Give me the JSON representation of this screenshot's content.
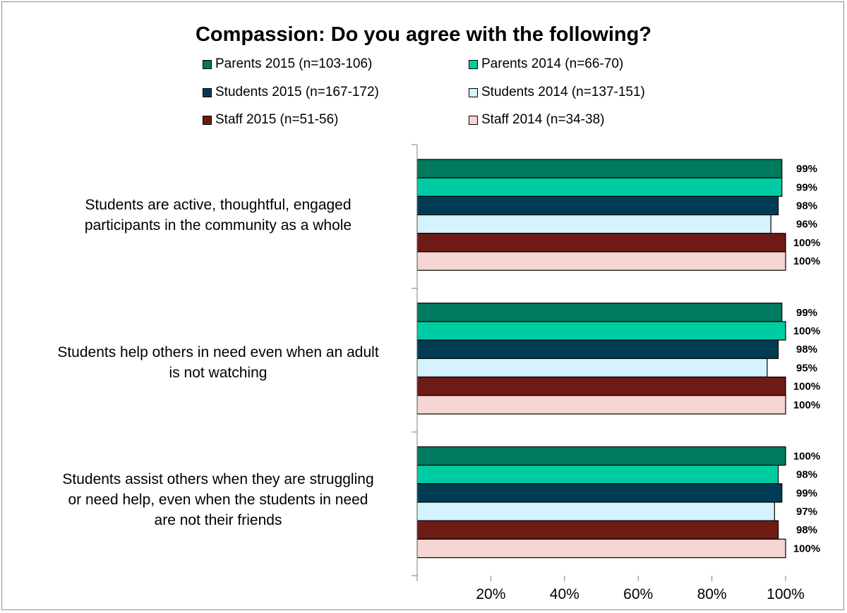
{
  "chart_data": {
    "type": "bar",
    "orientation": "horizontal",
    "title": "Compassion: Do you agree with the following?",
    "categories": [
      "Students are active, thoughtful, engaged participants in the community as a whole",
      "Students help others in need even when an adult is not watching",
      "Students assist others when they are struggling or need help, even when the students in need are not their friends"
    ],
    "category_lines": [
      [
        "Students are active, thoughtful, engaged",
        "participants in the community as a whole"
      ],
      [
        "Students help others in need even when an adult",
        "is not watching"
      ],
      [
        "Students assist others when they are struggling",
        "or need help, even when the students in need",
        "are not their friends"
      ]
    ],
    "series": [
      {
        "name": "Parents 2015 (n=103-106)",
        "color": "#007a5e",
        "values": [
          99,
          99,
          100
        ]
      },
      {
        "name": "Parents 2014 (n=66-70)",
        "color": "#00cca3",
        "values": [
          99,
          100,
          98
        ]
      },
      {
        "name": "Students 2015 (n=167-172)",
        "color": "#003d55",
        "values": [
          98,
          98,
          99
        ]
      },
      {
        "name": "Students 2014 (n=137-151)",
        "color": "#d6f2fc",
        "values": [
          96,
          95,
          97
        ]
      },
      {
        "name": "Staff 2015 (n=51-56)",
        "color": "#6e1b15",
        "values": [
          100,
          100,
          98
        ]
      },
      {
        "name": "Staff 2014 (n=34-38)",
        "color": "#f6d5d2",
        "values": [
          100,
          100,
          100
        ]
      }
    ],
    "value_labels": [
      [
        "99%",
        "99%",
        "98%",
        "96%",
        "100%",
        "100%"
      ],
      [
        "99%",
        "100%",
        "98%",
        "95%",
        "100%",
        "100%"
      ],
      [
        "100%",
        "98%",
        "99%",
        "97%",
        "98%",
        "100%"
      ]
    ],
    "xlim": [
      0,
      100
    ],
    "xticks": [
      20,
      40,
      60,
      80,
      100
    ],
    "xtick_labels": [
      "20%",
      "40%",
      "60%",
      "80%",
      "100%"
    ],
    "grid": false,
    "legend_position": "top"
  }
}
